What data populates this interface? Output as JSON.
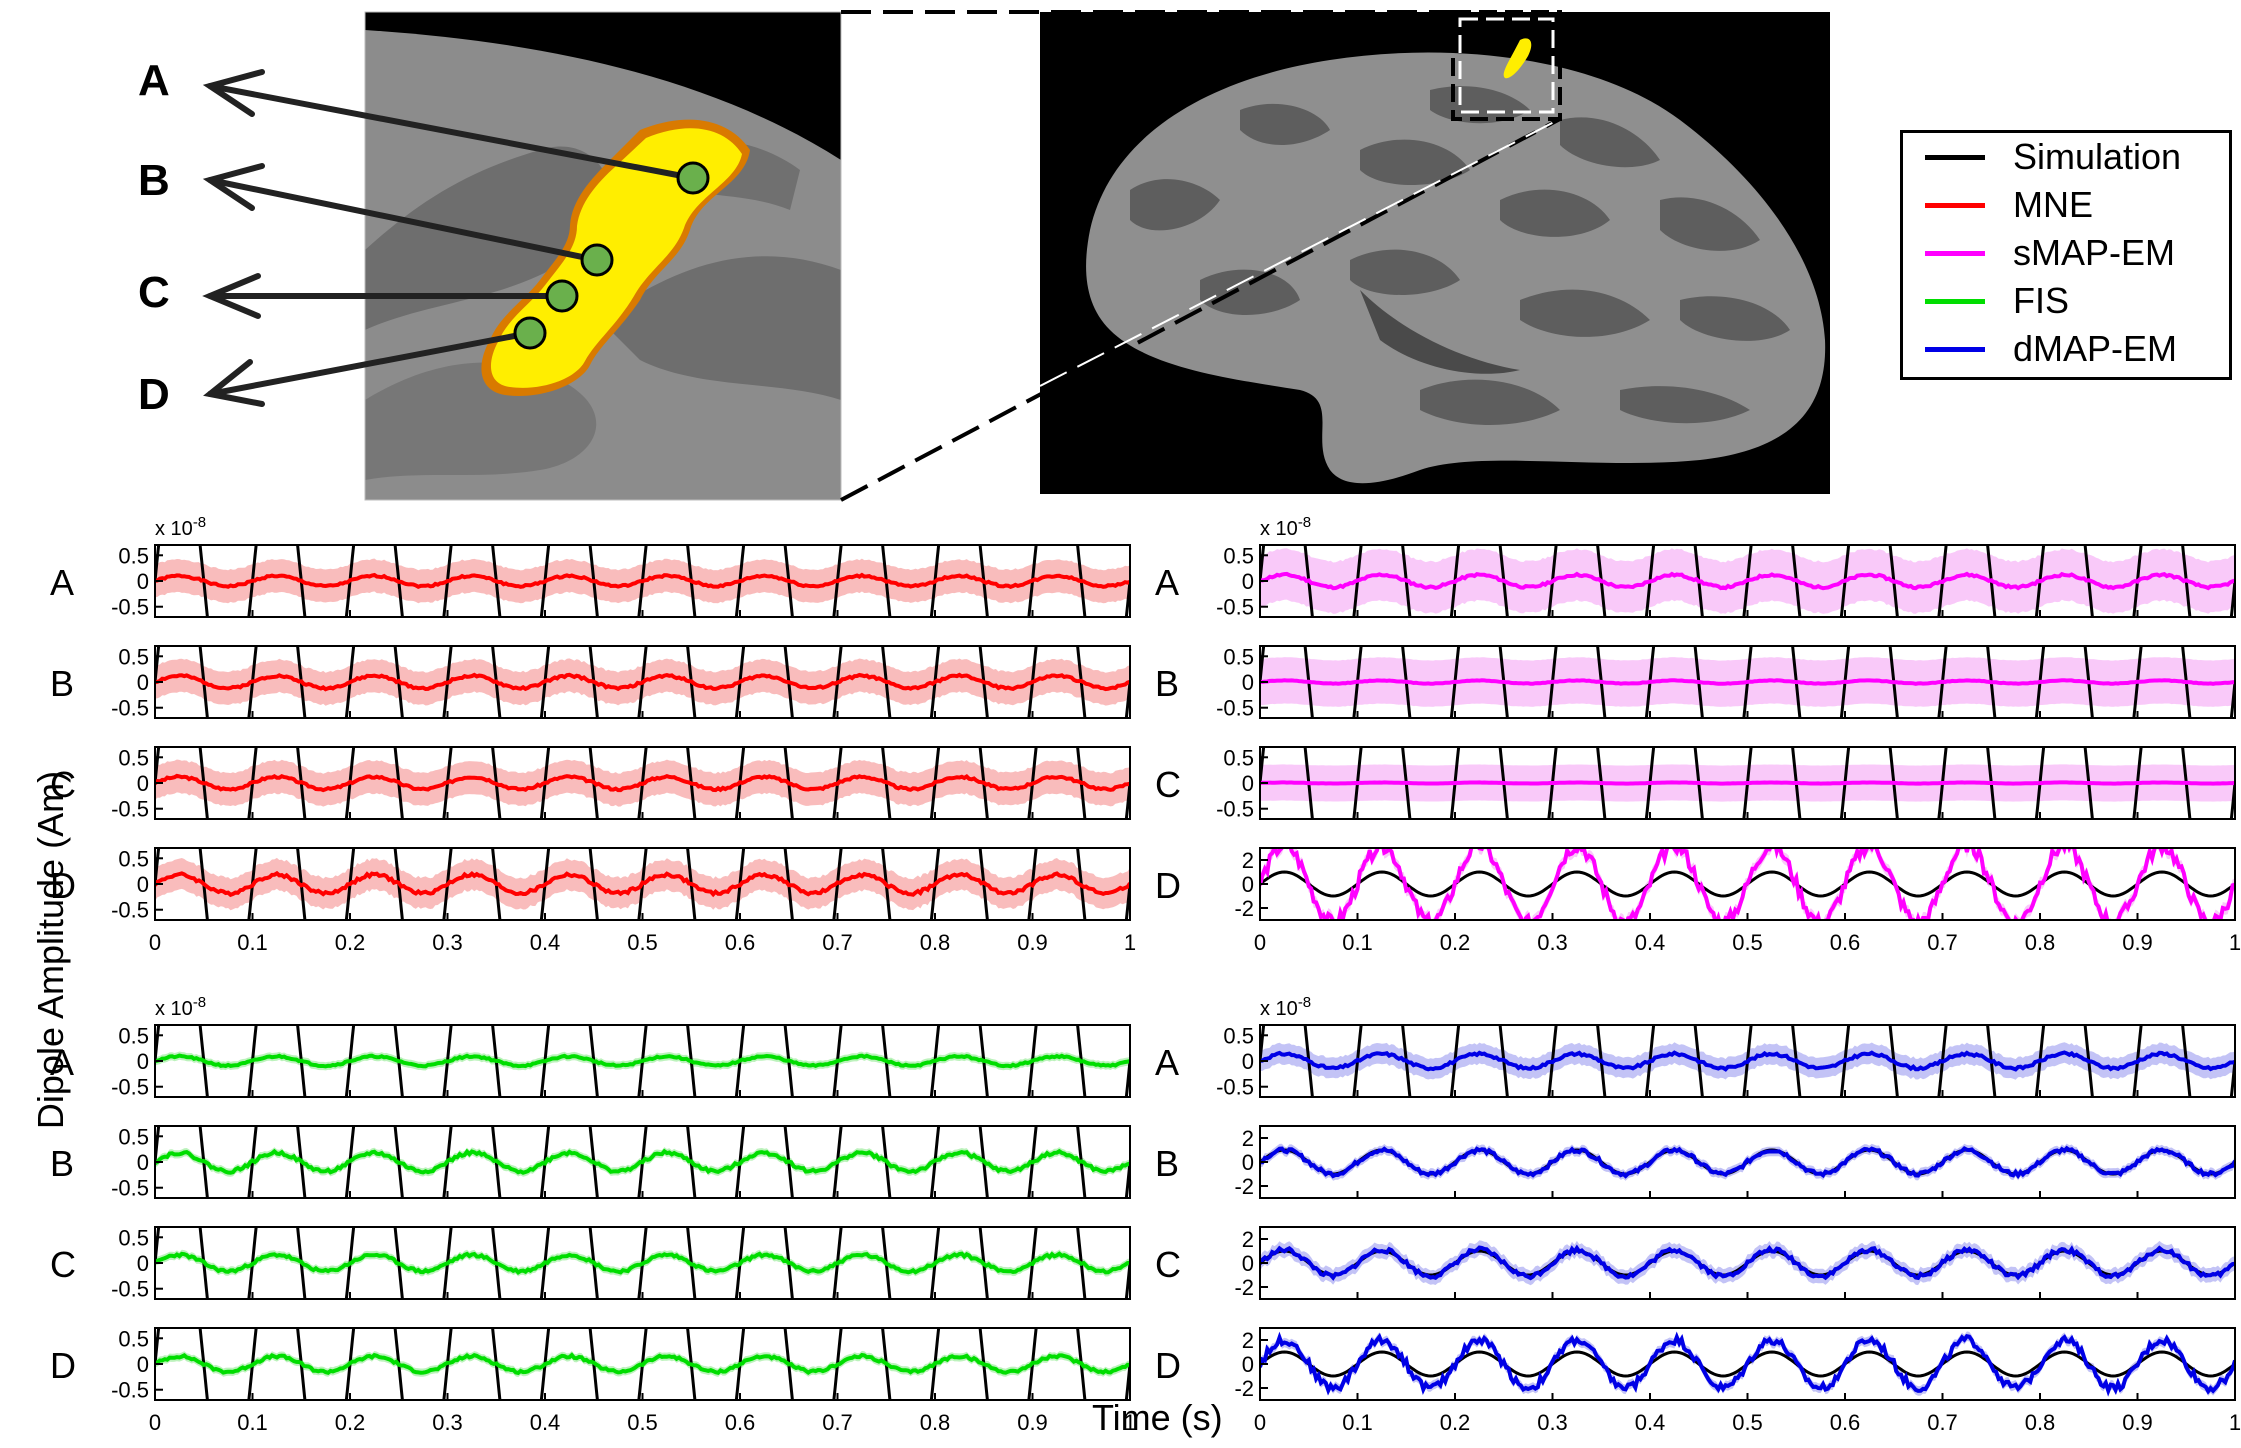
{
  "region_letters": [
    "A",
    "B",
    "C",
    "D"
  ],
  "legend": [
    {
      "label": "Simulation",
      "color": "#000000"
    },
    {
      "label": "MNE",
      "color": "#ff0000"
    },
    {
      "label": "sMAP-EM",
      "color": "#ff00ff"
    },
    {
      "label": "FIS",
      "color": "#00dd00"
    },
    {
      "label": "dMAP-EM",
      "color": "#0000e6"
    }
  ],
  "ylabel": "Dipole Amplitude (Am)",
  "xlabel": "Time (s)",
  "colors": {
    "brain_dark": "#5a5a5a",
    "brain_light": "#9a9a9a",
    "activation": "#ffee00",
    "marker": "#6ab04c"
  },
  "chart_data": [
    {
      "type": "line",
      "method": "MNE",
      "color": "#ff0000",
      "band_color": "#f8b0b0",
      "exponent_label": "x 10",
      "exponent": "-8",
      "xlim": [
        0,
        1
      ],
      "x_ticks": [
        "0",
        "0.1",
        "0.2",
        "0.3",
        "0.4",
        "0.5",
        "0.6",
        "0.7",
        "0.8",
        "0.9",
        "1"
      ],
      "simulation_frequency_hz": 10,
      "panels": [
        {
          "label": "A",
          "ylim": [
            -0.7,
            0.7
          ],
          "y_ticks": [
            "0.5",
            "0",
            "-0.5"
          ],
          "estimate_amplitude": 0.1,
          "band_halfwidth": 0.32
        },
        {
          "label": "B",
          "ylim": [
            -0.7,
            0.7
          ],
          "y_ticks": [
            "0.5",
            "0",
            "-0.5"
          ],
          "estimate_amplitude": 0.12,
          "band_halfwidth": 0.32
        },
        {
          "label": "C",
          "ylim": [
            -0.7,
            0.7
          ],
          "y_ticks": [
            "0.5",
            "0",
            "-0.5"
          ],
          "estimate_amplitude": 0.12,
          "band_halfwidth": 0.32
        },
        {
          "label": "D",
          "ylim": [
            -0.7,
            0.7
          ],
          "y_ticks": [
            "0.5",
            "0",
            "-0.5"
          ],
          "estimate_amplitude": 0.18,
          "band_halfwidth": 0.3
        }
      ]
    },
    {
      "type": "line",
      "method": "sMAP-EM",
      "color": "#ff00ff",
      "band_color": "#f8c0f8",
      "exponent_label": "x 10",
      "exponent": "-8",
      "xlim": [
        0,
        1
      ],
      "x_ticks": [
        "0",
        "0.1",
        "0.2",
        "0.3",
        "0.4",
        "0.5",
        "0.6",
        "0.7",
        "0.8",
        "0.9",
        "1"
      ],
      "simulation_frequency_hz": 10,
      "panels": [
        {
          "label": "A",
          "ylim": [
            -0.7,
            0.7
          ],
          "y_ticks": [
            "0.5",
            "0",
            "-0.5"
          ],
          "estimate_amplitude": 0.12,
          "band_halfwidth": 0.5
        },
        {
          "label": "B",
          "ylim": [
            -0.7,
            0.7
          ],
          "y_ticks": [
            "0.5",
            "0",
            "-0.5"
          ],
          "estimate_amplitude": 0.03,
          "band_halfwidth": 0.45
        },
        {
          "label": "C",
          "ylim": [
            -0.7,
            0.7
          ],
          "y_ticks": [
            "0.5",
            "0",
            "-0.5"
          ],
          "estimate_amplitude": 0.01,
          "band_halfwidth": 0.35
        },
        {
          "label": "D",
          "ylim": [
            -3,
            3
          ],
          "y_ticks": [
            "2",
            "0",
            "-2"
          ],
          "estimate_amplitude": 3.2,
          "band_halfwidth": 0.5,
          "simulation_amplitude": 1
        }
      ]
    },
    {
      "type": "line",
      "method": "FIS",
      "color": "#00dd00",
      "band_color": "#b0f0b0",
      "exponent_label": "x 10",
      "exponent": "-8",
      "xlim": [
        0,
        1
      ],
      "x_ticks": [
        "0",
        "0.1",
        "0.2",
        "0.3",
        "0.4",
        "0.5",
        "0.6",
        "0.7",
        "0.8",
        "0.9",
        "1"
      ],
      "simulation_frequency_hz": 10,
      "panels": [
        {
          "label": "A",
          "ylim": [
            -0.7,
            0.7
          ],
          "y_ticks": [
            "0.5",
            "0",
            "-0.5"
          ],
          "estimate_amplitude": 0.09,
          "band_halfwidth": 0.08
        },
        {
          "label": "B",
          "ylim": [
            -0.7,
            0.7
          ],
          "y_ticks": [
            "0.5",
            "0",
            "-0.5"
          ],
          "estimate_amplitude": 0.18,
          "band_halfwidth": 0.08
        },
        {
          "label": "C",
          "ylim": [
            -0.7,
            0.7
          ],
          "y_ticks": [
            "0.5",
            "0",
            "-0.5"
          ],
          "estimate_amplitude": 0.16,
          "band_halfwidth": 0.08
        },
        {
          "label": "D",
          "ylim": [
            -0.7,
            0.7
          ],
          "y_ticks": [
            "0.5",
            "0",
            "-0.5"
          ],
          "estimate_amplitude": 0.15,
          "band_halfwidth": 0.08
        }
      ]
    },
    {
      "type": "line",
      "method": "dMAP-EM",
      "color": "#0000e6",
      "band_color": "#b8b8f4",
      "exponent_label": "x 10",
      "exponent": "-8",
      "xlim": [
        0,
        1
      ],
      "x_ticks": [
        "0",
        "0.1",
        "0.2",
        "0.3",
        "0.4",
        "0.5",
        "0.6",
        "0.7",
        "0.8",
        "0.9",
        "1"
      ],
      "simulation_frequency_hz": 10,
      "panels": [
        {
          "label": "A",
          "ylim": [
            -0.7,
            0.7
          ],
          "y_ticks": [
            "0.5",
            "0",
            "-0.5"
          ],
          "estimate_amplitude": 0.14,
          "band_halfwidth": 0.2
        },
        {
          "label": "B",
          "ylim": [
            -3,
            3
          ],
          "y_ticks": [
            "2",
            "0",
            "-2"
          ],
          "estimate_amplitude": 1.0,
          "band_halfwidth": 0.4,
          "simulation_amplitude": 1
        },
        {
          "label": "C",
          "ylim": [
            -3,
            3
          ],
          "y_ticks": [
            "2",
            "0",
            "-2"
          ],
          "estimate_amplitude": 1.1,
          "band_halfwidth": 0.6,
          "simulation_amplitude": 1
        },
        {
          "label": "D",
          "ylim": [
            -3,
            3
          ],
          "y_ticks": [
            "2",
            "0",
            "-2"
          ],
          "estimate_amplitude": 2.0,
          "band_halfwidth": 0.4,
          "simulation_amplitude": 1
        }
      ]
    }
  ]
}
